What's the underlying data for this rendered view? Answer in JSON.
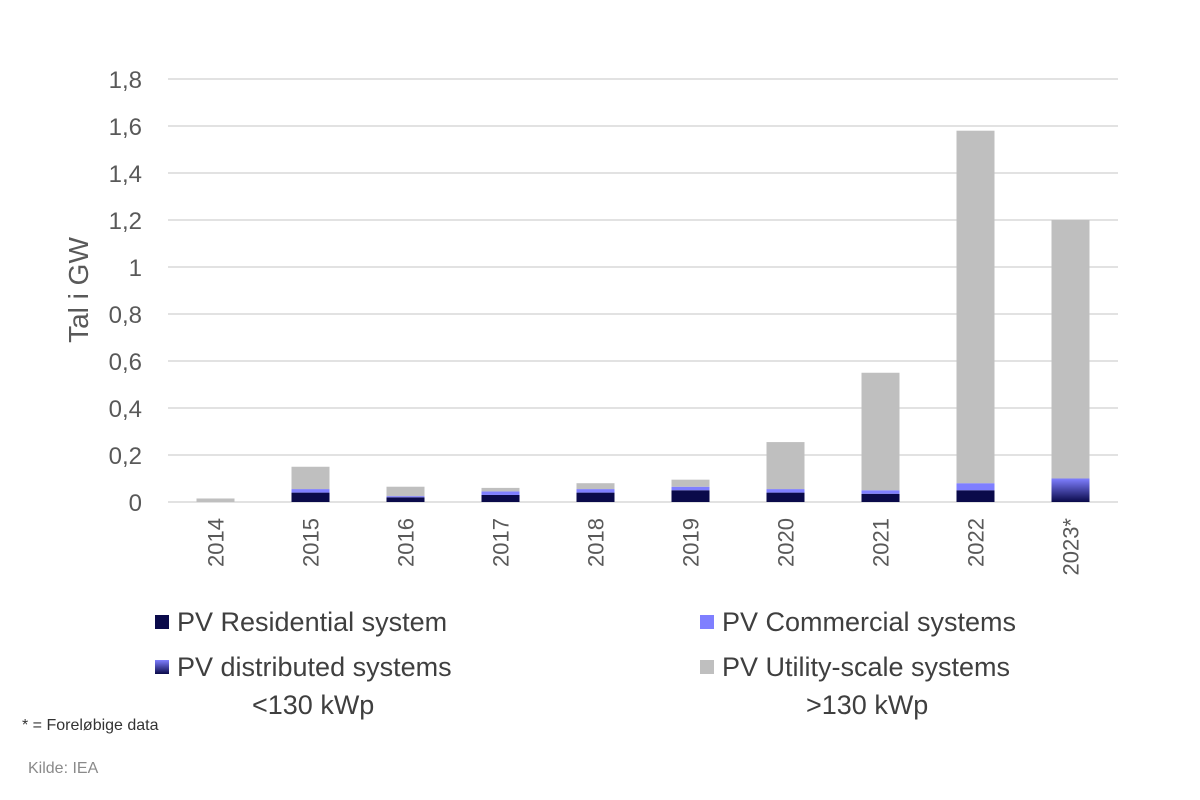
{
  "chart_data": {
    "type": "bar",
    "stacked": true,
    "title": "",
    "ylabel": "Tal i GW",
    "xlabel": "",
    "ylim": [
      0,
      1.8
    ],
    "yticks": [
      "0",
      "0,2",
      "0,4",
      "0,6",
      "0,8",
      "1",
      "1,2",
      "1,4",
      "1,6",
      "1,8"
    ],
    "ytick_values": [
      0,
      0.2,
      0.4,
      0.6,
      0.8,
      1.0,
      1.2,
      1.4,
      1.6,
      1.8
    ],
    "grid": true,
    "legend_position": "bottom",
    "categories": [
      "2014",
      "2015",
      "2016",
      "2017",
      "2018",
      "2019",
      "2020",
      "2021",
      "2022",
      "2023*"
    ],
    "series": [
      {
        "name": "PV Residential system",
        "color": "#0a0a4a",
        "values": [
          0.0,
          0.04,
          0.02,
          0.03,
          0.04,
          0.05,
          0.04,
          0.035,
          0.05,
          0.0
        ]
      },
      {
        "name": "PV Commercial systems",
        "color": "#7f7fff",
        "values": [
          0.0,
          0.015,
          0.005,
          0.015,
          0.015,
          0.015,
          0.015,
          0.015,
          0.03,
          0.0
        ]
      },
      {
        "name": "PV distributed systems",
        "sublabel": "<130 kWp",
        "color": "gradient",
        "values": [
          0.0,
          0.0,
          0.0,
          0.0,
          0.0,
          0.0,
          0.0,
          0.0,
          0.0,
          0.1
        ]
      },
      {
        "name": "PV Utility-scale systems",
        "sublabel": ">130 kWp",
        "color": "#bfbfbf",
        "values": [
          0.015,
          0.095,
          0.04,
          0.015,
          0.025,
          0.03,
          0.2,
          0.5,
          1.5,
          1.1
        ]
      }
    ]
  },
  "footnote": "* = Foreløbige data",
  "source": "Kilde: IEA"
}
